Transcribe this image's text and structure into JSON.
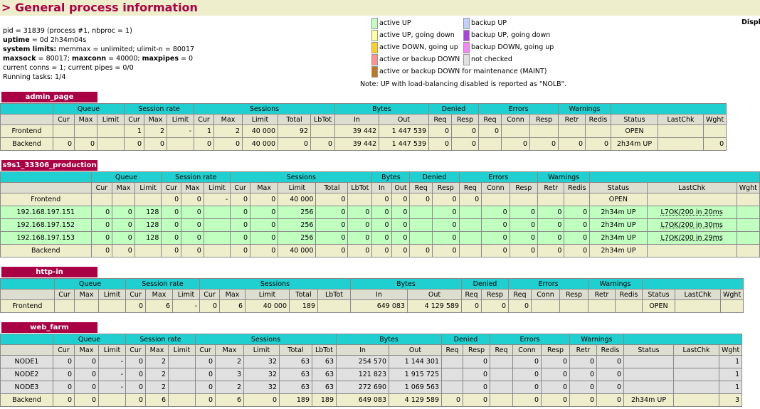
{
  "header": {
    "title": "> General process information"
  },
  "info": {
    "l1": "pid = 31839 (process #1, nbproc = 1)",
    "l2_k": "uptime",
    "l2_v": " = 0d 2h34m04s",
    "l3_k": "system limits:",
    "l3_v": " memmax = unlimited; ulimit-n = 80017",
    "l4_k1": "maxsock",
    "l4_v1": " = 80017; ",
    "l4_k2": "maxconn",
    "l4_v2": " = 40000; ",
    "l4_k3": "maxpipes",
    "l4_v3": " = 0",
    "l5": "current conns = 1; current pipes = 0/0",
    "l6": "Running tasks: 1/4"
  },
  "displ": "Displ",
  "legend": [
    {
      "label": "active UP",
      "color": "#c0ffc0"
    },
    {
      "label": "active UP, going down",
      "color": "#ffffa0"
    },
    {
      "label": "active DOWN, going up",
      "color": "#ffd020"
    },
    {
      "label": "active or backup DOWN",
      "color": "#ff9090"
    },
    {
      "label": "active or backup DOWN for maintenance (MAINT)",
      "color": "#c07820"
    },
    {
      "label": "backup UP",
      "color": "#c0d0ff"
    },
    {
      "label": "backup UP, going down",
      "color": "#b040e0"
    },
    {
      "label": "backup DOWN, going up",
      "color": "#ff80ff"
    },
    {
      "label": "not checked",
      "color": "#e0e0e0"
    }
  ],
  "note": "Note: UP with load-balancing disabled is reported as \"NOLB\".",
  "groups": [
    "Queue",
    "Session rate",
    "Sessions",
    "Bytes",
    "Denied",
    "Errors",
    "Warnings"
  ],
  "cols": [
    "Cur",
    "Max",
    "Limit",
    "Cur",
    "Max",
    "Limit",
    "Cur",
    "Max",
    "Limit",
    "Total",
    "LbTot",
    "In",
    "Out",
    "Req",
    "Resp",
    "Req",
    "Conn",
    "Resp",
    "Retr",
    "Redis",
    "Status",
    "LastChk",
    "Wght"
  ],
  "proxies": [
    {
      "name": "admin_page",
      "rows": [
        {
          "cls": "frontend",
          "cells": [
            "Frontend",
            "",
            "",
            "",
            "1",
            "2",
            "-",
            "1",
            "2",
            "40 000",
            "92",
            "",
            "39 442",
            "1 447 539",
            "0",
            "0",
            "0",
            "",
            "",
            "",
            "",
            "OPEN",
            "",
            ""
          ]
        },
        {
          "cls": "backend",
          "cells": [
            "Backend",
            "0",
            "0",
            "",
            "0",
            "0",
            "",
            "0",
            "0",
            "40 000",
            "0",
            "0",
            "39 442",
            "1 447 539",
            "0",
            "0",
            "",
            "0",
            "0",
            "0",
            "0",
            "2h34m UP",
            "",
            "0"
          ]
        }
      ]
    },
    {
      "name": "s9s1_33306_production",
      "rows": [
        {
          "cls": "frontend",
          "cells": [
            "Frontend",
            "",
            "",
            "",
            "0",
            "0",
            "-",
            "0",
            "0",
            "40 000",
            "0",
            "",
            "0",
            "0",
            "0",
            "0",
            "0",
            "",
            "",
            "",
            "",
            "OPEN",
            "",
            ""
          ]
        },
        {
          "cls": "up",
          "cells": [
            "192.168.197.151",
            "0",
            "0",
            "128",
            "0",
            "0",
            "",
            "0",
            "0",
            "256",
            "0",
            "0",
            "0",
            "0",
            "",
            "0",
            "",
            "0",
            "0",
            "0",
            "0",
            "2h34m UP",
            "L7OK/200 in 20ms",
            ""
          ]
        },
        {
          "cls": "up",
          "cells": [
            "192.168.197.152",
            "0",
            "0",
            "128",
            "0",
            "0",
            "",
            "0",
            "0",
            "256",
            "0",
            "0",
            "0",
            "0",
            "",
            "0",
            "",
            "0",
            "0",
            "0",
            "0",
            "2h34m UP",
            "L7OK/200 in 30ms",
            ""
          ]
        },
        {
          "cls": "up",
          "cells": [
            "192.168.197.153",
            "0",
            "0",
            "128",
            "0",
            "0",
            "",
            "0",
            "0",
            "256",
            "0",
            "0",
            "0",
            "0",
            "",
            "0",
            "",
            "0",
            "0",
            "0",
            "0",
            "2h34m UP",
            "L7OK/200 in 29ms",
            ""
          ]
        },
        {
          "cls": "backend",
          "cells": [
            "Backend",
            "0",
            "0",
            "",
            "0",
            "0",
            "",
            "0",
            "0",
            "40 000",
            "0",
            "0",
            "0",
            "0",
            "0",
            "0",
            "",
            "0",
            "0",
            "0",
            "0",
            "2h34m UP",
            "",
            ""
          ]
        }
      ]
    },
    {
      "name": "http-in",
      "rows": [
        {
          "cls": "frontend",
          "cells": [
            "Frontend",
            "",
            "",
            "",
            "0",
            "6",
            "-",
            "0",
            "6",
            "40 000",
            "189",
            "",
            "649 083",
            "4 129 589",
            "0",
            "0",
            "0",
            "",
            "",
            "",
            "",
            "OPEN",
            "",
            ""
          ]
        }
      ]
    },
    {
      "name": "web_farm",
      "rows": [
        {
          "cls": "nochk",
          "cells": [
            "NODE1",
            "0",
            "0",
            "-",
            "0",
            "2",
            "",
            "0",
            "2",
            "32",
            "63",
            "63",
            "254 570",
            "1 144 301",
            "",
            "0",
            "",
            "0",
            "0",
            "0",
            "0",
            "",
            "",
            "1"
          ]
        },
        {
          "cls": "nochk",
          "cells": [
            "NODE2",
            "0",
            "0",
            "-",
            "0",
            "2",
            "",
            "0",
            "3",
            "32",
            "63",
            "63",
            "121 823",
            "1 915 725",
            "",
            "0",
            "",
            "0",
            "0",
            "0",
            "0",
            "",
            "",
            "1"
          ]
        },
        {
          "cls": "nochk",
          "cells": [
            "NODE3",
            "0",
            "0",
            "-",
            "0",
            "2",
            "",
            "0",
            "2",
            "32",
            "63",
            "63",
            "272 690",
            "1 069 563",
            "",
            "0",
            "",
            "0",
            "0",
            "0",
            "0",
            "",
            "",
            "1"
          ]
        },
        {
          "cls": "backend",
          "cells": [
            "Backend",
            "0",
            "0",
            "",
            "0",
            "6",
            "",
            "0",
            "6",
            "0",
            "189",
            "189",
            "649 083",
            "4 129 589",
            "0",
            "0",
            "",
            "0",
            "0",
            "0",
            "0",
            "2h34m UP",
            "",
            "3"
          ]
        }
      ]
    }
  ]
}
